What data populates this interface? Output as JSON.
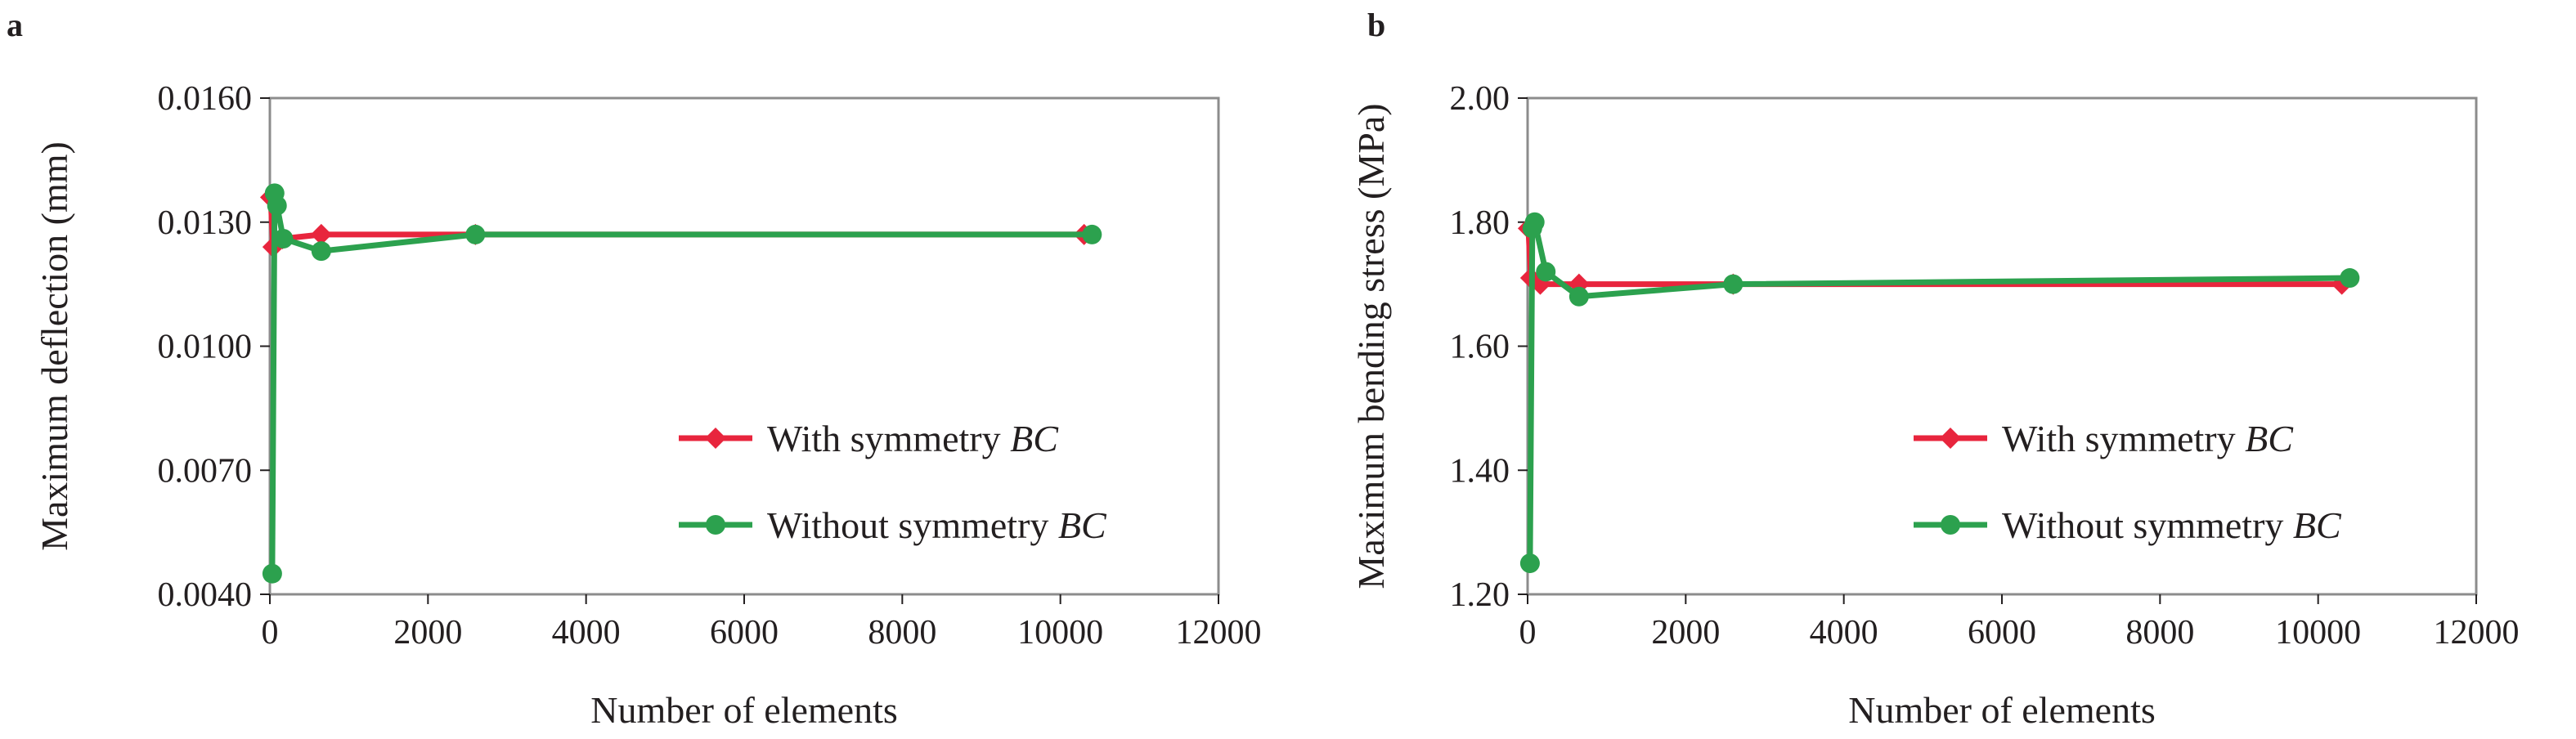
{
  "colors": {
    "with_symmetry": "#e8253d",
    "without_symmetry": "#2ca14e",
    "frame": "#8c8c8c",
    "text": "#231f20"
  },
  "chart_data": [
    {
      "panel": "a",
      "type": "line",
      "xlabel": "Number of elements",
      "ylabel": "Maximum deflection (mm)",
      "xlim": [
        0,
        12000
      ],
      "ylim": [
        0.004,
        0.016
      ],
      "x_ticks": [
        "0",
        "2000",
        "4000",
        "6000",
        "8000",
        "10000",
        "12000"
      ],
      "y_ticks": [
        "0.0040",
        "0.0070",
        "0.0100",
        "0.0130",
        "0.0160"
      ],
      "y_tick_values": [
        0.004,
        0.007,
        0.01,
        0.013,
        0.016
      ],
      "grid": false,
      "legend_position": "lower-right",
      "series": [
        {
          "name_prefix": "With symmetry ",
          "name_italic": "BC",
          "marker": "diamond",
          "color_key": "with_symmetry",
          "x": [
            10,
            40,
            160,
            650,
            2600,
            10300
          ],
          "y": [
            0.0136,
            0.0124,
            0.0126,
            0.0127,
            0.0127,
            0.0127
          ]
        },
        {
          "name_prefix": "Without symmetry ",
          "name_italic": "BC",
          "marker": "circle",
          "color_key": "without_symmetry",
          "x": [
            30,
            60,
            90,
            170,
            650,
            2600,
            10400
          ],
          "y": [
            0.0045,
            0.0137,
            0.0134,
            0.0126,
            0.0123,
            0.0127,
            0.0127
          ]
        }
      ]
    },
    {
      "panel": "b",
      "type": "line",
      "xlabel": "Number of elements",
      "ylabel": "Maximum bending stress (MPa)",
      "xlim": [
        0,
        12000
      ],
      "ylim": [
        1.2,
        2.0
      ],
      "x_ticks": [
        "0",
        "2000",
        "4000",
        "6000",
        "8000",
        "10000",
        "12000"
      ],
      "y_ticks": [
        "1.20",
        "1.40",
        "1.60",
        "1.80",
        "2.00"
      ],
      "y_tick_values": [
        1.2,
        1.4,
        1.6,
        1.8,
        2.0
      ],
      "grid": false,
      "legend_position": "lower-right",
      "series": [
        {
          "name_prefix": "With symmetry ",
          "name_italic": "BC",
          "marker": "diamond",
          "color_key": "with_symmetry",
          "x": [
            10,
            40,
            160,
            650,
            2600,
            10300
          ],
          "y": [
            1.79,
            1.71,
            1.7,
            1.7,
            1.7,
            1.7
          ]
        },
        {
          "name_prefix": "Without symmetry ",
          "name_italic": "BC",
          "marker": "circle",
          "color_key": "without_symmetry",
          "x": [
            30,
            60,
            90,
            230,
            650,
            2600,
            10400
          ],
          "y": [
            1.25,
            1.79,
            1.8,
            1.72,
            1.68,
            1.7,
            1.71
          ]
        }
      ]
    }
  ]
}
